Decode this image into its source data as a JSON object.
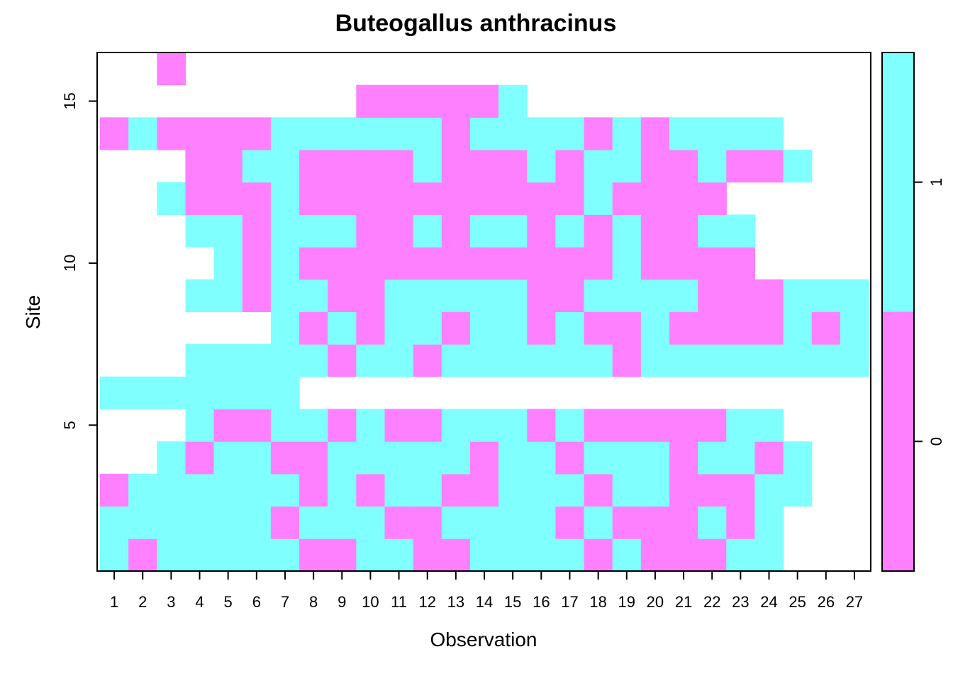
{
  "chart_data": {
    "type": "heatmap",
    "title": "Buteogallus anthracinus",
    "xlabel": "Observation",
    "ylabel": "Site",
    "x": [
      1,
      2,
      3,
      4,
      5,
      6,
      7,
      8,
      9,
      10,
      11,
      12,
      13,
      14,
      15,
      16,
      17,
      18,
      19,
      20,
      21,
      22,
      23,
      24,
      25,
      26,
      27
    ],
    "y": [
      1,
      2,
      3,
      4,
      5,
      6,
      7,
      8,
      9,
      10,
      11,
      12,
      13,
      14,
      15,
      16
    ],
    "x_tick_labels": [
      "1",
      "2",
      "3",
      "4",
      "5",
      "6",
      "7",
      "8",
      "9",
      "10",
      "11",
      "12",
      "13",
      "14",
      "15",
      "16",
      "17",
      "18",
      "19",
      "20",
      "21",
      "22",
      "23",
      "24",
      "25",
      "26",
      "27"
    ],
    "y_tick_labels": [
      "5",
      "10",
      "15"
    ],
    "y_ticks": [
      5,
      10,
      15
    ],
    "missing_value": -1,
    "rows_bottom_to_top": [
      [
        1,
        0,
        1,
        1,
        1,
        1,
        1,
        0,
        0,
        1,
        1,
        0,
        0,
        1,
        1,
        1,
        1,
        0,
        1,
        0,
        0,
        0,
        1,
        1,
        -1,
        -1,
        -1
      ],
      [
        1,
        1,
        1,
        1,
        1,
        1,
        0,
        1,
        1,
        1,
        0,
        0,
        1,
        1,
        1,
        1,
        0,
        1,
        0,
        0,
        0,
        1,
        0,
        1,
        -1,
        -1,
        -1
      ],
      [
        0,
        1,
        1,
        1,
        1,
        1,
        1,
        0,
        1,
        0,
        1,
        1,
        0,
        0,
        1,
        1,
        1,
        0,
        1,
        1,
        0,
        0,
        0,
        1,
        1,
        -1,
        -1
      ],
      [
        -1,
        -1,
        1,
        0,
        1,
        1,
        0,
        0,
        1,
        1,
        1,
        1,
        1,
        0,
        1,
        1,
        0,
        1,
        1,
        1,
        0,
        1,
        1,
        0,
        1,
        -1,
        -1
      ],
      [
        -1,
        -1,
        -1,
        1,
        0,
        0,
        1,
        1,
        0,
        1,
        0,
        0,
        1,
        1,
        1,
        0,
        1,
        0,
        0,
        0,
        0,
        0,
        1,
        1,
        -1,
        -1,
        -1
      ],
      [
        1,
        1,
        1,
        1,
        1,
        1,
        1,
        -1,
        -1,
        -1,
        -1,
        -1,
        -1,
        -1,
        -1,
        -1,
        -1,
        -1,
        -1,
        -1,
        -1,
        -1,
        -1,
        -1,
        -1,
        -1,
        -1
      ],
      [
        -1,
        -1,
        -1,
        1,
        1,
        1,
        1,
        1,
        0,
        1,
        1,
        0,
        1,
        1,
        1,
        1,
        1,
        1,
        0,
        1,
        1,
        1,
        1,
        1,
        1,
        1,
        1
      ],
      [
        -1,
        -1,
        -1,
        -1,
        -1,
        -1,
        1,
        0,
        1,
        0,
        1,
        1,
        0,
        1,
        1,
        0,
        1,
        0,
        0,
        1,
        0,
        0,
        0,
        0,
        1,
        0,
        1
      ],
      [
        -1,
        -1,
        -1,
        1,
        1,
        0,
        1,
        1,
        0,
        0,
        1,
        1,
        1,
        1,
        1,
        0,
        0,
        1,
        1,
        1,
        1,
        0,
        0,
        0,
        1,
        1,
        1
      ],
      [
        -1,
        -1,
        -1,
        -1,
        1,
        0,
        1,
        0,
        0,
        0,
        0,
        0,
        0,
        0,
        0,
        0,
        0,
        0,
        1,
        0,
        0,
        0,
        0,
        -1,
        -1,
        -1,
        -1
      ],
      [
        -1,
        -1,
        -1,
        1,
        1,
        0,
        1,
        1,
        1,
        0,
        0,
        1,
        0,
        1,
        1,
        0,
        1,
        0,
        1,
        0,
        0,
        1,
        1,
        -1,
        -1,
        -1,
        -1
      ],
      [
        -1,
        -1,
        1,
        0,
        0,
        0,
        1,
        0,
        0,
        0,
        0,
        0,
        0,
        0,
        0,
        0,
        0,
        1,
        0,
        0,
        0,
        0,
        -1,
        -1,
        -1,
        -1,
        -1
      ],
      [
        -1,
        -1,
        -1,
        0,
        0,
        1,
        1,
        0,
        0,
        0,
        0,
        1,
        0,
        0,
        0,
        1,
        0,
        1,
        1,
        0,
        0,
        1,
        0,
        0,
        1,
        -1,
        -1
      ],
      [
        0,
        1,
        0,
        0,
        0,
        0,
        1,
        1,
        1,
        1,
        1,
        1,
        0,
        1,
        1,
        1,
        1,
        0,
        1,
        0,
        1,
        1,
        1,
        1,
        -1,
        -1,
        -1
      ],
      [
        -1,
        -1,
        -1,
        -1,
        -1,
        -1,
        -1,
        -1,
        -1,
        0,
        0,
        0,
        0,
        0,
        1,
        -1,
        -1,
        -1,
        -1,
        -1,
        -1,
        -1,
        -1,
        -1,
        -1,
        -1,
        -1
      ],
      [
        -1,
        -1,
        0,
        -1,
        -1,
        -1,
        -1,
        -1,
        -1,
        -1,
        -1,
        -1,
        -1,
        -1,
        -1,
        -1,
        -1,
        -1,
        -1,
        -1,
        -1,
        -1,
        -1,
        -1,
        -1,
        -1,
        -1
      ]
    ],
    "colors": {
      "0": "#FF80FF",
      "1": "#80FFFF"
    },
    "legend": {
      "position": "right",
      "levels": [
        0,
        1
      ],
      "labels": [
        "0",
        "1"
      ],
      "colors": [
        "#FF80FF",
        "#80FFFF"
      ]
    },
    "grid": false
  }
}
